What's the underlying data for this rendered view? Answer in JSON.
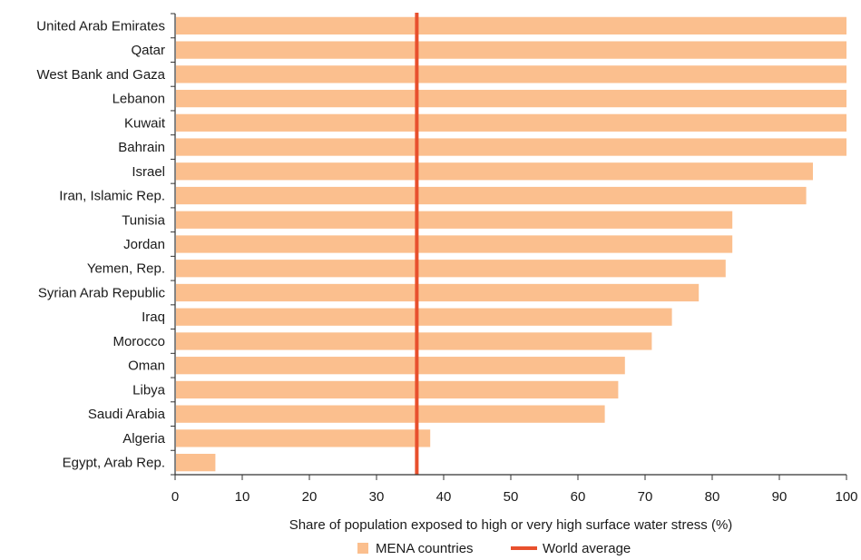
{
  "chart_data": {
    "type": "bar",
    "orientation": "horizontal",
    "categories": [
      "United Arab Emirates",
      "Qatar",
      "West Bank and Gaza",
      "Lebanon",
      "Kuwait",
      "Bahrain",
      "Israel",
      "Iran, Islamic Rep.",
      "Tunisia",
      "Jordan",
      "Yemen, Rep.",
      "Syrian Arab Republic",
      "Iraq",
      "Morocco",
      "Oman",
      "Libya",
      "Saudi Arabia",
      "Algeria",
      "Egypt, Arab Rep."
    ],
    "series": [
      {
        "name": "MENA countries",
        "values": [
          100,
          100,
          100,
          100,
          100,
          100,
          95,
          94,
          83,
          83,
          82,
          78,
          74,
          71,
          67,
          66,
          64,
          38,
          6
        ]
      }
    ],
    "reference_lines": [
      {
        "name": "World average",
        "value": 36
      }
    ],
    "xlabel": "Share of population exposed to high or very high surface water stress (%)",
    "ylabel": "",
    "xlim": [
      0,
      100
    ],
    "xticks": [
      0,
      10,
      20,
      30,
      40,
      50,
      60,
      70,
      80,
      90,
      100
    ],
    "grid": false,
    "legend_position": "bottom",
    "colors": {
      "bar": "#FBBF8E",
      "reference_line": "#E8502D",
      "axis": "#333333"
    }
  }
}
